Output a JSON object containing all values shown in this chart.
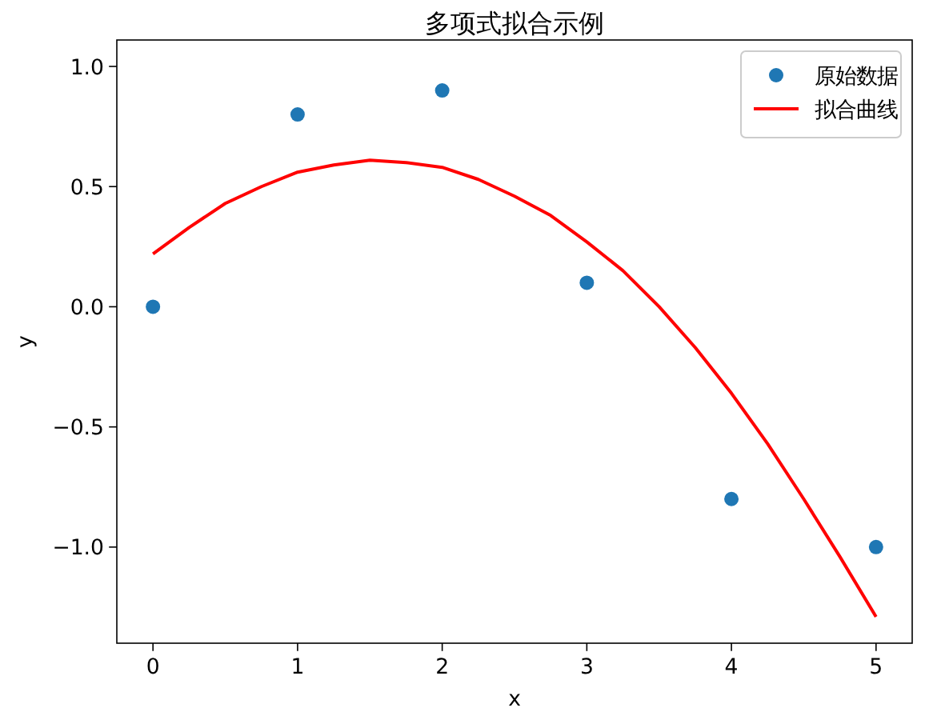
{
  "chart_data": {
    "type": "scatter",
    "title": "多项式拟合示例",
    "xlabel": "x",
    "ylabel": "y",
    "xlim": [
      -0.25,
      5.25
    ],
    "ylim": [
      -1.4,
      1.11
    ],
    "xticks": [
      0,
      1,
      2,
      3,
      4,
      5
    ],
    "yticks": [
      {
        "value": -1,
        "label": "−1.0"
      },
      {
        "value": -0.5,
        "label": "−0.5"
      },
      {
        "value": 0,
        "label": "0.0"
      },
      {
        "value": 0.5,
        "label": "0.5"
      },
      {
        "value": 1,
        "label": "1.0"
      }
    ],
    "grid": false,
    "legend": "top right",
    "series": [
      {
        "name": "原始数据",
        "type": "scatter",
        "color": "#1f77b4",
        "marker": "circle",
        "x": [
          0,
          1,
          2,
          3,
          4,
          5
        ],
        "values": [
          0,
          0.8,
          0.9,
          0.1,
          -0.8,
          -1
        ]
      },
      {
        "name": "拟合曲线",
        "type": "line",
        "color": "#ff0000",
        "marker": "none",
        "line_style": "solid",
        "x": [
          0,
          0.25,
          0.5,
          0.75,
          1,
          1.25,
          1.5,
          1.75,
          2,
          2.25,
          2.5,
          2.75,
          3,
          3.25,
          3.5,
          3.75,
          4,
          4.25,
          4.5,
          4.75,
          5
        ],
        "values": [
          0.22,
          0.33,
          0.43,
          0.5,
          0.56,
          0.59,
          0.61,
          0.6,
          0.58,
          0.53,
          0.46,
          0.38,
          0.27,
          0.15,
          0.0,
          -0.17,
          -0.36,
          -0.57,
          -0.8,
          -1.04,
          -1.29
        ]
      }
    ]
  }
}
